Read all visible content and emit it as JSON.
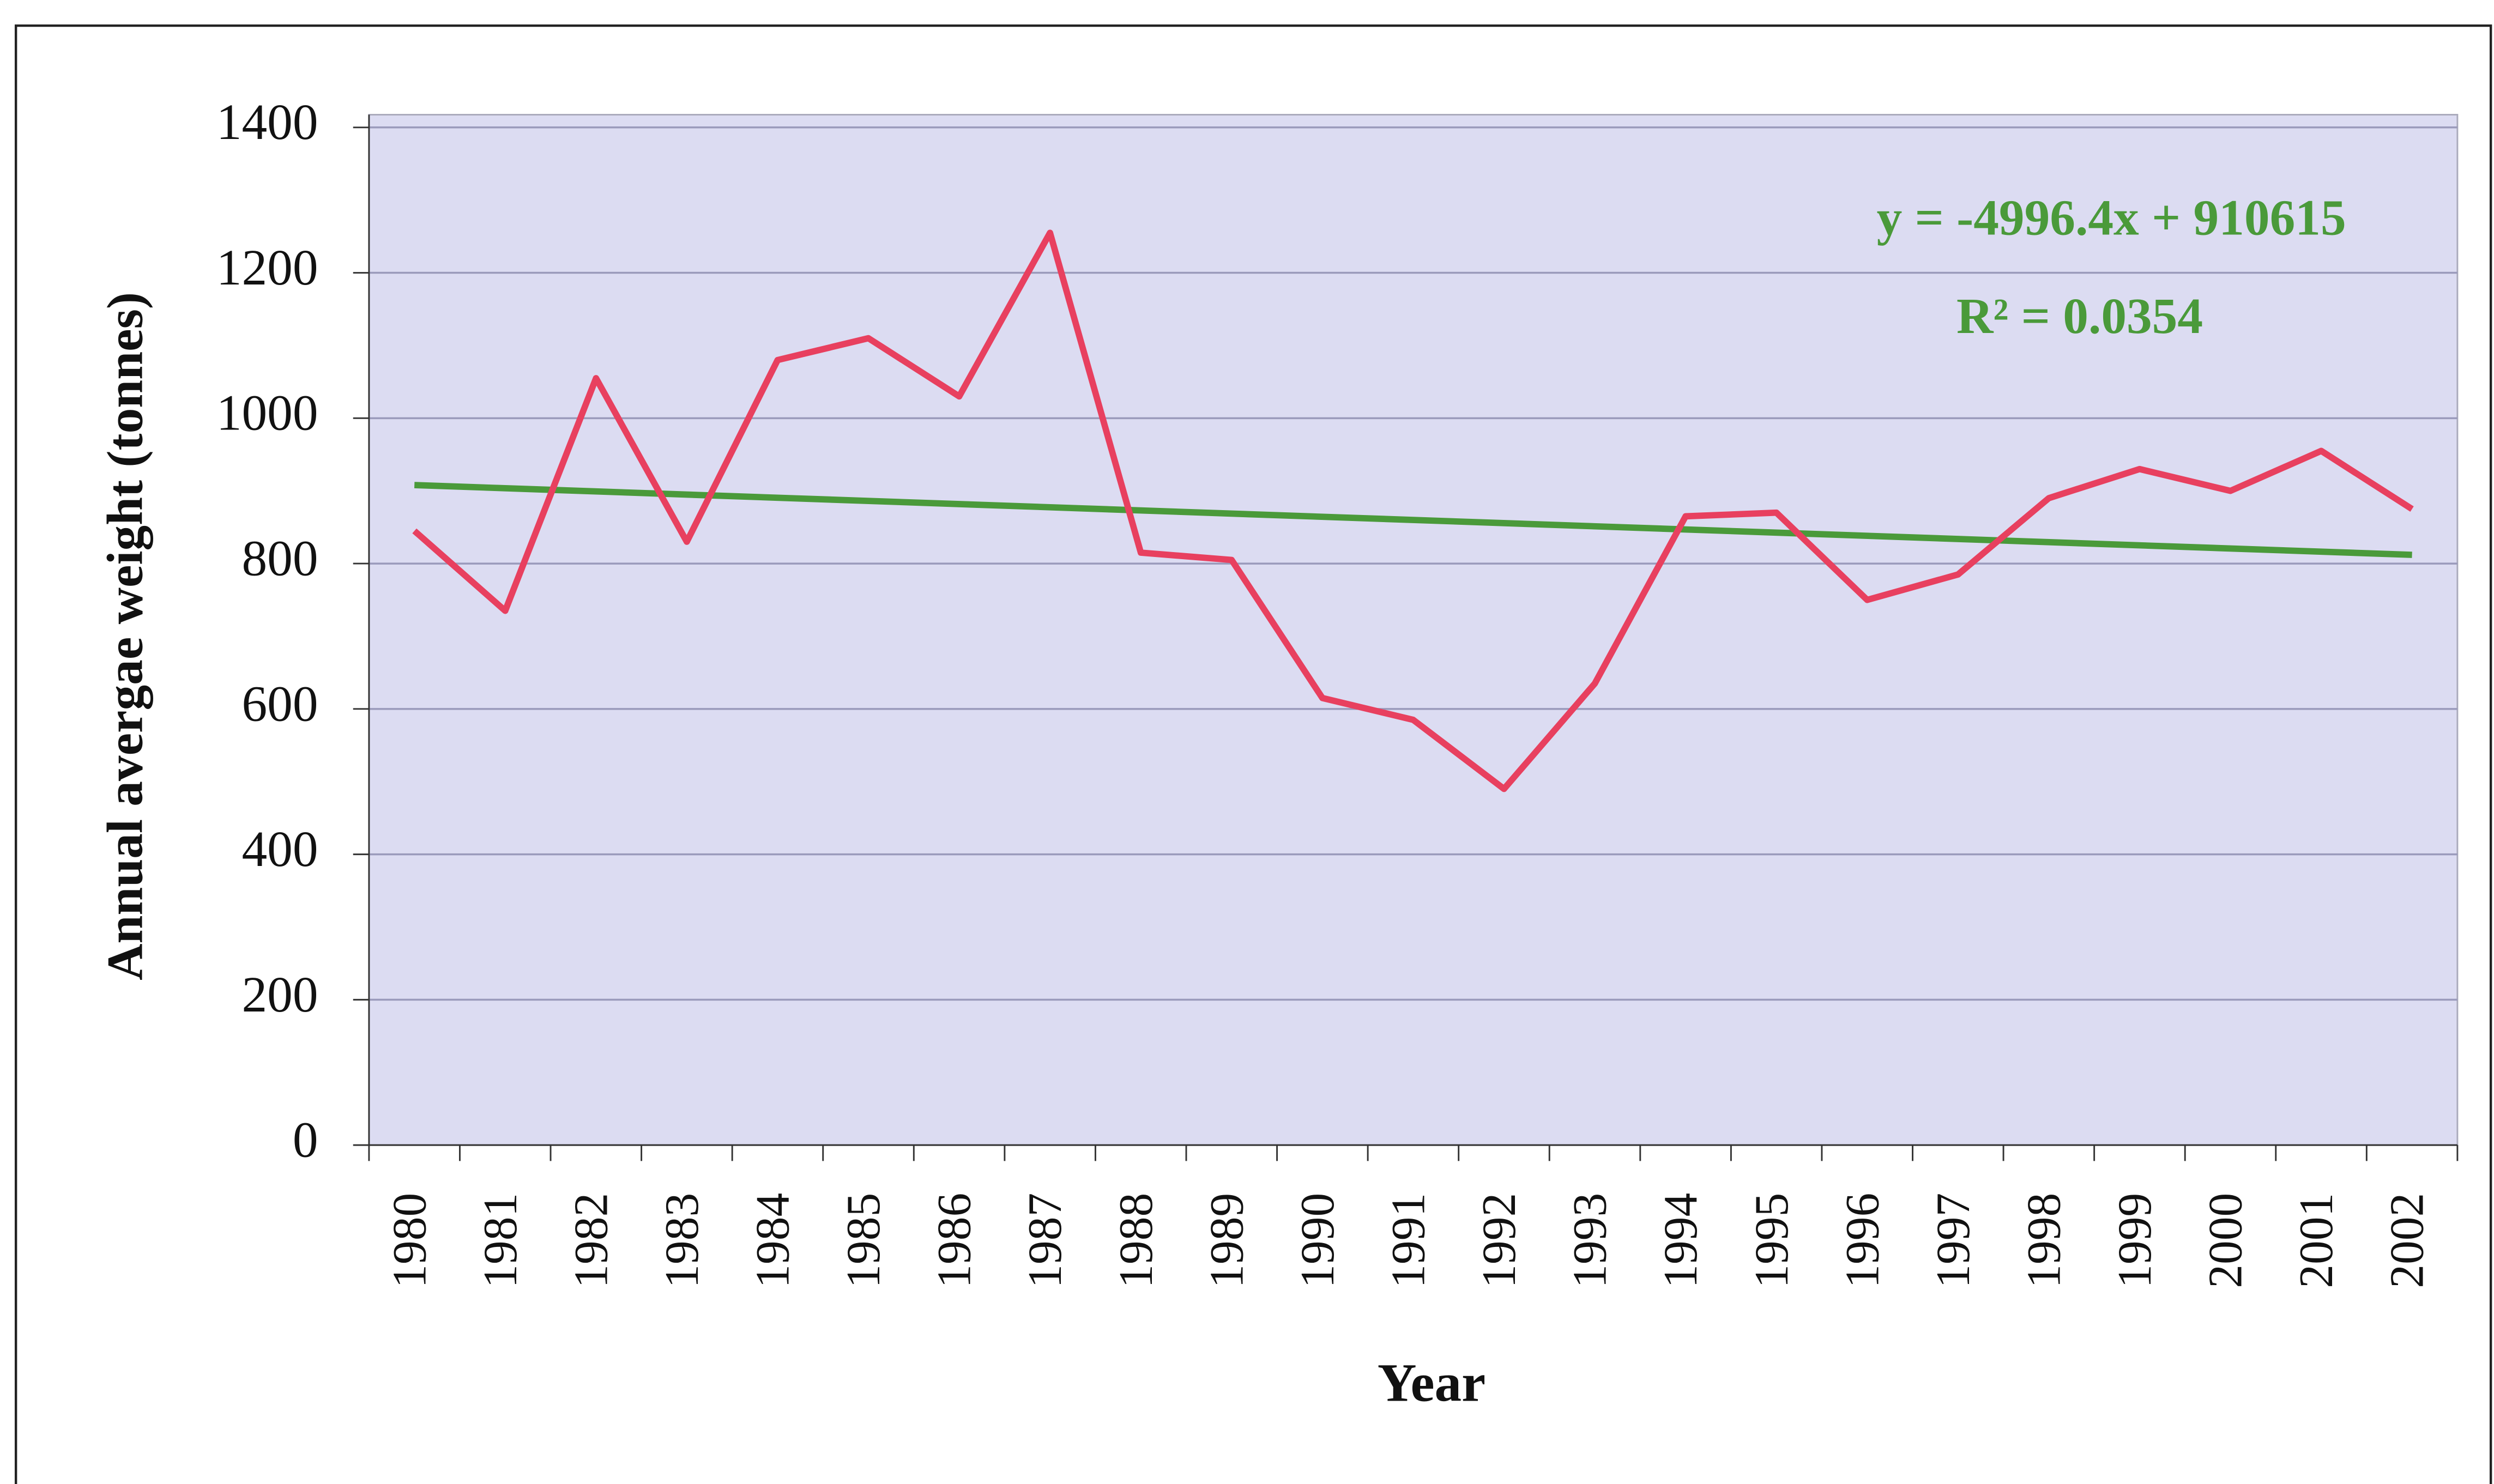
{
  "chart_data": {
    "type": "line",
    "y_label": "Annual avergae weight (tonnes)",
    "x_label": "Year",
    "categories": [
      "1980",
      "1981",
      "1982",
      "1983",
      "1984",
      "1985",
      "1986",
      "1987",
      "1988",
      "1989",
      "1990",
      "1991",
      "1992",
      "1993",
      "1994",
      "1995",
      "1996",
      "1997",
      "1998",
      "1999",
      "2000",
      "2001",
      "2002"
    ],
    "series": [
      {
        "color": "#e8405f",
        "values": [
          845,
          735,
          1055,
          830,
          1080,
          1110,
          1030,
          1255,
          815,
          805,
          615,
          585,
          490,
          635,
          865,
          870,
          750,
          785,
          890,
          930,
          900,
          955,
          875
        ]
      }
    ],
    "trend": {
      "color": "#4a9a3a",
      "values": [
        908,
        812
      ],
      "equation": "y = -4996.4x + 910615",
      "r2": "R² = 0.0354"
    },
    "ylim": [
      0,
      1400
    ],
    "yticks": [
      0,
      200,
      400,
      600,
      800,
      1000,
      1200,
      1400
    ],
    "grid": true
  }
}
